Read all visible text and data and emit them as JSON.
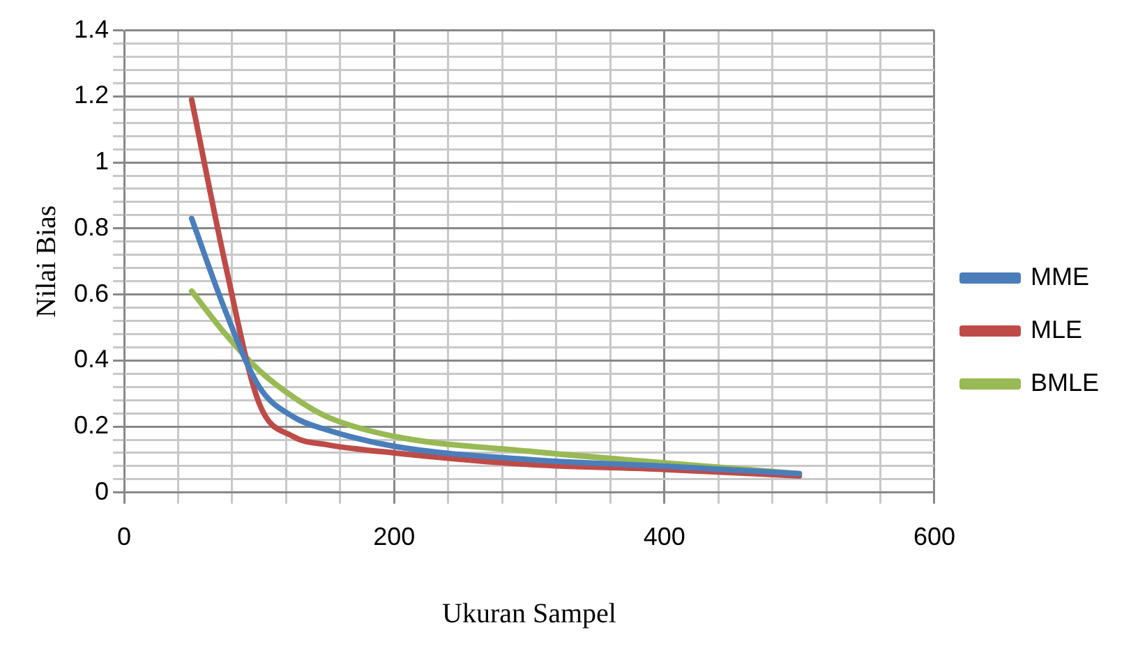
{
  "chart_data": {
    "type": "line",
    "xlabel": "Ukuran Sampel",
    "ylabel": "Nilai Bias",
    "x": [
      50,
      75,
      100,
      125,
      150,
      200,
      300,
      400,
      500
    ],
    "series": [
      {
        "name": "MME",
        "color": "#4a7ebb",
        "values": [
          0.83,
          0.55,
          0.32,
          0.23,
          0.19,
          0.14,
          0.1,
          0.08,
          0.057
        ]
      },
      {
        "name": "MLE",
        "color": "#be4b48",
        "values": [
          1.19,
          0.69,
          0.27,
          0.17,
          0.145,
          0.12,
          0.085,
          0.07,
          0.05
        ]
      },
      {
        "name": "BMLE",
        "color": "#98b954",
        "values": [
          0.61,
          0.48,
          0.37,
          0.29,
          0.23,
          0.17,
          0.125,
          0.09,
          0.057
        ]
      }
    ],
    "xlim": [
      0,
      600
    ],
    "xticks": [
      0,
      {
        "value": 40,
        "label": null
      },
      {
        "value": 80,
        "label": null
      },
      {
        "value": 120,
        "label": null
      },
      {
        "value": 160,
        "label": null
      },
      200,
      {
        "value": 240,
        "label": null
      },
      {
        "value": 280,
        "label": null
      },
      {
        "value": 320,
        "label": null
      },
      {
        "value": 360,
        "label": null
      },
      400,
      {
        "value": 440,
        "label": null
      },
      {
        "value": 480,
        "label": null
      },
      {
        "value": 520,
        "label": null
      },
      {
        "value": 560,
        "label": null
      },
      600
    ],
    "ylim": [
      0,
      1.4
    ],
    "yticks": [
      0,
      {
        "value": 0.04,
        "label": null
      },
      {
        "value": 0.08,
        "label": null
      },
      {
        "value": 0.12,
        "label": null
      },
      {
        "value": 0.16,
        "label": null
      },
      0.2,
      {
        "value": 0.24,
        "label": null
      },
      {
        "value": 0.28,
        "label": null
      },
      {
        "value": 0.32,
        "label": null
      },
      {
        "value": 0.36,
        "label": null
      },
      0.4,
      {
        "value": 0.44,
        "label": null
      },
      {
        "value": 0.48,
        "label": null
      },
      {
        "value": 0.52,
        "label": null
      },
      {
        "value": 0.56,
        "label": null
      },
      0.6,
      {
        "value": 0.64,
        "label": null
      },
      {
        "value": 0.68,
        "label": null
      },
      {
        "value": 0.72,
        "label": null
      },
      {
        "value": 0.76,
        "label": null
      },
      0.8,
      {
        "value": 0.84,
        "label": null
      },
      {
        "value": 0.88,
        "label": null
      },
      {
        "value": 0.92,
        "label": null
      },
      {
        "value": 0.96,
        "label": null
      },
      1,
      {
        "value": 1.04,
        "label": null
      },
      {
        "value": 1.08,
        "label": null
      },
      {
        "value": 1.12,
        "label": null
      },
      {
        "value": 1.16,
        "label": null
      },
      1.2,
      {
        "value": 1.24,
        "label": null
      },
      {
        "value": 1.28,
        "label": null
      },
      {
        "value": 1.32,
        "label": null
      },
      {
        "value": 1.36,
        "label": null
      },
      1.4
    ],
    "grid": true,
    "legend": "right",
    "marker": "none",
    "line_style": "solid"
  }
}
